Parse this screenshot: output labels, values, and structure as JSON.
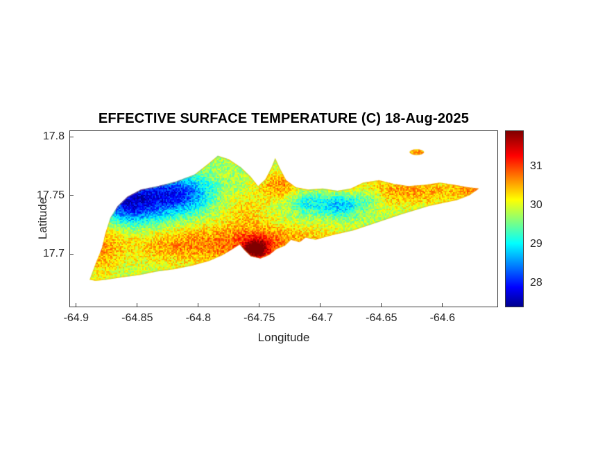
{
  "figure": {
    "title": "EFFECTIVE SURFACE TEMPERATURE (C) 18-Aug-2025",
    "xlabel": "Longitude",
    "ylabel": "Latitude",
    "background": "#ffffff"
  },
  "chart_data": {
    "type": "heatmap",
    "title": "EFFECTIVE SURFACE TEMPERATURE (C) 18-Aug-2025",
    "xlabel": "Longitude",
    "ylabel": "Latitude",
    "xlim": [
      -64.905,
      -64.555
    ],
    "ylim": [
      17.655,
      17.805
    ],
    "x_ticks": [
      -64.9,
      -64.85,
      -64.8,
      -64.75,
      -64.7,
      -64.65,
      -64.6
    ],
    "x_tick_labels": [
      "-64.9",
      "-64.85",
      "-64.8",
      "-64.75",
      "-64.7",
      "-64.65",
      "-64.6"
    ],
    "y_ticks": [
      17.8,
      17.75,
      17.7
    ],
    "y_tick_labels": [
      "17.8",
      "17.75",
      "17.7"
    ],
    "grid": false,
    "colorbar": {
      "vmin": 27.4,
      "vmax": 31.9,
      "ticks": [
        31,
        30,
        29,
        28
      ],
      "tick_labels": [
        "31",
        "30",
        "29",
        "28"
      ],
      "colormap": "jet",
      "position": "right"
    },
    "colormap_stops": [
      [
        0.0,
        [
          0,
          0,
          143
        ]
      ],
      [
        0.11,
        [
          0,
          0,
          255
        ]
      ],
      [
        0.36,
        [
          0,
          255,
          255
        ]
      ],
      [
        0.61,
        [
          255,
          255,
          0
        ]
      ],
      [
        0.86,
        [
          255,
          0,
          0
        ]
      ],
      [
        1.0,
        [
          128,
          0,
          0
        ]
      ]
    ],
    "base_temperature_c": 29.8,
    "noise_amplitude_c": 0.4,
    "coastal_fringe_color": "rgba(238,150,30,0.38)",
    "island_outline": [
      [
        -64.889,
        17.678
      ],
      [
        -64.884,
        17.692
      ],
      [
        -64.879,
        17.705
      ],
      [
        -64.876,
        17.718
      ],
      [
        -64.872,
        17.731
      ],
      [
        -64.866,
        17.741
      ],
      [
        -64.858,
        17.749
      ],
      [
        -64.847,
        17.755
      ],
      [
        -64.833,
        17.758
      ],
      [
        -64.818,
        17.762
      ],
      [
        -64.803,
        17.768
      ],
      [
        -64.792,
        17.777
      ],
      [
        -64.784,
        17.784
      ],
      [
        -64.775,
        17.781
      ],
      [
        -64.765,
        17.774
      ],
      [
        -64.757,
        17.766
      ],
      [
        -64.751,
        17.758
      ],
      [
        -64.745,
        17.764
      ],
      [
        -64.74,
        17.774
      ],
      [
        -64.737,
        17.782
      ],
      [
        -64.733,
        17.773
      ],
      [
        -64.728,
        17.763
      ],
      [
        -64.72,
        17.757
      ],
      [
        -64.71,
        17.755
      ],
      [
        -64.698,
        17.756
      ],
      [
        -64.686,
        17.754
      ],
      [
        -64.675,
        17.756
      ],
      [
        -64.665,
        17.761
      ],
      [
        -64.652,
        17.763
      ],
      [
        -64.64,
        17.76
      ],
      [
        -64.628,
        17.758
      ],
      [
        -64.615,
        17.759
      ],
      [
        -64.602,
        17.761
      ],
      [
        -64.59,
        17.759
      ],
      [
        -64.579,
        17.757
      ],
      [
        -64.57,
        17.756
      ],
      [
        -64.578,
        17.75
      ],
      [
        -64.588,
        17.746
      ],
      [
        -64.611,
        17.741
      ],
      [
        -64.633,
        17.734
      ],
      [
        -64.653,
        17.727
      ],
      [
        -64.673,
        17.72
      ],
      [
        -64.69,
        17.716
      ],
      [
        -64.704,
        17.712
      ],
      [
        -64.712,
        17.714
      ],
      [
        -64.717,
        17.71
      ],
      [
        -64.724,
        17.712
      ],
      [
        -64.729,
        17.707
      ],
      [
        -64.736,
        17.704
      ],
      [
        -64.742,
        17.699
      ],
      [
        -64.749,
        17.696
      ],
      [
        -64.757,
        17.698
      ],
      [
        -64.762,
        17.703
      ],
      [
        -64.766,
        17.708
      ],
      [
        -64.772,
        17.704
      ],
      [
        -64.78,
        17.699
      ],
      [
        -64.791,
        17.694
      ],
      [
        -64.805,
        17.69
      ],
      [
        -64.819,
        17.687
      ],
      [
        -64.834,
        17.685
      ],
      [
        -64.848,
        17.682
      ],
      [
        -64.862,
        17.68
      ],
      [
        -64.875,
        17.678
      ],
      [
        -64.884,
        17.677
      ]
    ],
    "islets": [
      {
        "center": [
          -64.621,
          17.787
        ],
        "rx": 0.006,
        "ry": 0.0025
      }
    ],
    "temperature_blobs": [
      [
        -64.846,
        17.748,
        0.028,
        0.015,
        -1.8
      ],
      [
        -64.86,
        17.74,
        0.013,
        0.01,
        -0.6
      ],
      [
        -64.81,
        17.752,
        0.016,
        0.01,
        -0.9
      ],
      [
        -64.683,
        17.742,
        0.012,
        0.007,
        -1.2
      ],
      [
        -64.712,
        17.744,
        0.011,
        0.007,
        -0.8
      ],
      [
        -64.66,
        17.748,
        0.008,
        0.005,
        -0.6
      ],
      [
        -64.795,
        17.708,
        0.05,
        0.013,
        0.9
      ],
      [
        -64.753,
        17.7035,
        0.0075,
        0.0055,
        1.9
      ],
      [
        -64.748,
        17.712,
        0.018,
        0.01,
        0.5
      ],
      [
        -64.88,
        17.705,
        0.012,
        0.02,
        0.6
      ],
      [
        -64.733,
        17.758,
        0.013,
        0.009,
        0.8
      ],
      [
        -64.628,
        17.753,
        0.042,
        0.009,
        0.75
      ],
      [
        -64.575,
        17.7555,
        0.01,
        0.005,
        0.5
      ],
      [
        -64.621,
        17.787,
        0.007,
        0.004,
        0.8
      ],
      [
        -64.7,
        17.713,
        0.025,
        0.008,
        0.4
      ],
      [
        -64.762,
        17.738,
        0.014,
        0.01,
        0.45
      ]
    ]
  }
}
